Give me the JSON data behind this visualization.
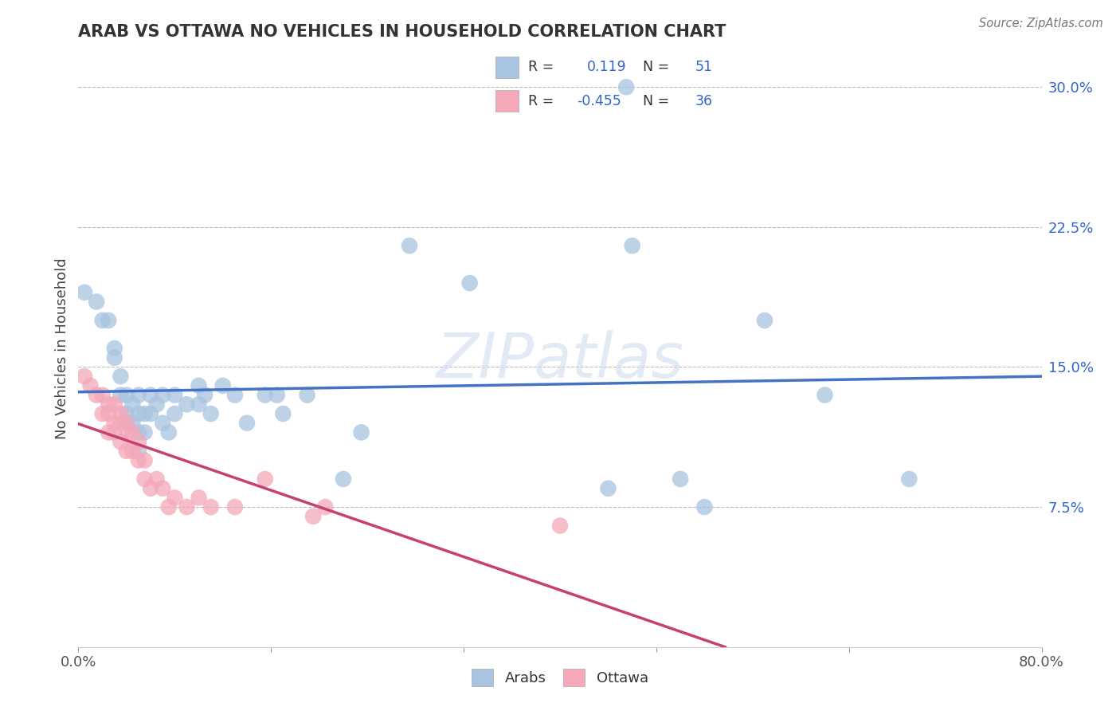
{
  "title": "ARAB VS OTTAWA NO VEHICLES IN HOUSEHOLD CORRELATION CHART",
  "source": "Source: ZipAtlas.com",
  "ylabel": "No Vehicles in Household",
  "xlabel": "",
  "xlim": [
    0.0,
    0.8
  ],
  "ylim": [
    0.0,
    0.32
  ],
  "xtick_labels": [
    "0.0%",
    "80.0%"
  ],
  "ytick_positions": [
    0.075,
    0.15,
    0.225,
    0.3
  ],
  "arab_R": 0.119,
  "arab_N": 51,
  "ottawa_R": -0.455,
  "ottawa_N": 36,
  "arab_color": "#a8c4e0",
  "ottawa_color": "#f4a8b8",
  "arab_line_color": "#4472c4",
  "ottawa_line_color": "#c84070",
  "legend_label_arab": "Arabs",
  "legend_label_ottawa": "Ottawa",
  "watermark": "ZIPatlas",
  "arab_points": [
    [
      0.005,
      0.19
    ],
    [
      0.015,
      0.185
    ],
    [
      0.02,
      0.175
    ],
    [
      0.025,
      0.175
    ],
    [
      0.03,
      0.16
    ],
    [
      0.03,
      0.155
    ],
    [
      0.035,
      0.145
    ],
    [
      0.035,
      0.135
    ],
    [
      0.04,
      0.135
    ],
    [
      0.04,
      0.125
    ],
    [
      0.04,
      0.12
    ],
    [
      0.045,
      0.13
    ],
    [
      0.045,
      0.12
    ],
    [
      0.05,
      0.135
    ],
    [
      0.05,
      0.125
    ],
    [
      0.05,
      0.115
    ],
    [
      0.05,
      0.105
    ],
    [
      0.055,
      0.125
    ],
    [
      0.055,
      0.115
    ],
    [
      0.06,
      0.135
    ],
    [
      0.06,
      0.125
    ],
    [
      0.065,
      0.13
    ],
    [
      0.07,
      0.135
    ],
    [
      0.07,
      0.12
    ],
    [
      0.075,
      0.115
    ],
    [
      0.08,
      0.135
    ],
    [
      0.08,
      0.125
    ],
    [
      0.09,
      0.13
    ],
    [
      0.1,
      0.14
    ],
    [
      0.1,
      0.13
    ],
    [
      0.105,
      0.135
    ],
    [
      0.11,
      0.125
    ],
    [
      0.12,
      0.14
    ],
    [
      0.13,
      0.135
    ],
    [
      0.14,
      0.12
    ],
    [
      0.155,
      0.135
    ],
    [
      0.165,
      0.135
    ],
    [
      0.17,
      0.125
    ],
    [
      0.19,
      0.135
    ],
    [
      0.22,
      0.09
    ],
    [
      0.235,
      0.115
    ],
    [
      0.275,
      0.215
    ],
    [
      0.325,
      0.195
    ],
    [
      0.44,
      0.085
    ],
    [
      0.455,
      0.3
    ],
    [
      0.46,
      0.215
    ],
    [
      0.5,
      0.09
    ],
    [
      0.52,
      0.075
    ],
    [
      0.57,
      0.175
    ],
    [
      0.62,
      0.135
    ],
    [
      0.69,
      0.09
    ]
  ],
  "ottawa_points": [
    [
      0.005,
      0.145
    ],
    [
      0.01,
      0.14
    ],
    [
      0.015,
      0.135
    ],
    [
      0.02,
      0.135
    ],
    [
      0.02,
      0.125
    ],
    [
      0.025,
      0.13
    ],
    [
      0.025,
      0.125
    ],
    [
      0.025,
      0.115
    ],
    [
      0.03,
      0.13
    ],
    [
      0.03,
      0.12
    ],
    [
      0.03,
      0.115
    ],
    [
      0.035,
      0.125
    ],
    [
      0.035,
      0.12
    ],
    [
      0.035,
      0.11
    ],
    [
      0.04,
      0.12
    ],
    [
      0.04,
      0.115
    ],
    [
      0.04,
      0.105
    ],
    [
      0.045,
      0.115
    ],
    [
      0.045,
      0.105
    ],
    [
      0.05,
      0.11
    ],
    [
      0.05,
      0.1
    ],
    [
      0.055,
      0.1
    ],
    [
      0.055,
      0.09
    ],
    [
      0.06,
      0.085
    ],
    [
      0.065,
      0.09
    ],
    [
      0.07,
      0.085
    ],
    [
      0.075,
      0.075
    ],
    [
      0.08,
      0.08
    ],
    [
      0.09,
      0.075
    ],
    [
      0.1,
      0.08
    ],
    [
      0.11,
      0.075
    ],
    [
      0.13,
      0.075
    ],
    [
      0.155,
      0.09
    ],
    [
      0.195,
      0.07
    ],
    [
      0.205,
      0.075
    ],
    [
      0.4,
      0.065
    ]
  ]
}
